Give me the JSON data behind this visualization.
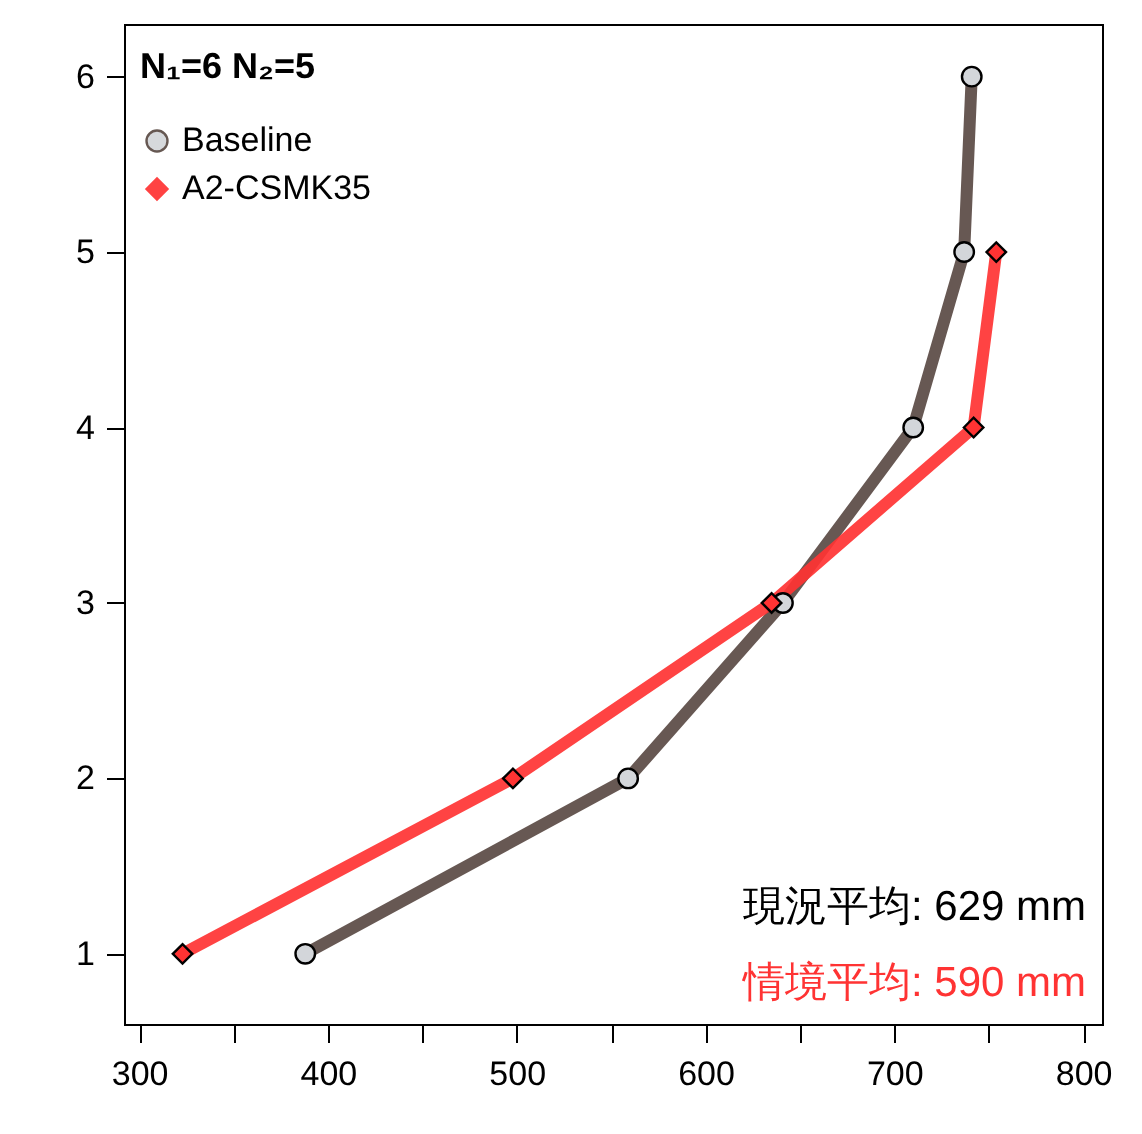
{
  "chart_data": {
    "type": "line",
    "series": [
      {
        "name": "Baseline",
        "color": "#5a4a44",
        "marker": "circle",
        "x": [
          388,
          559,
          641,
          710,
          737,
          741
        ],
        "values": [
          1,
          2,
          3,
          4,
          5,
          6
        ]
      },
      {
        "name": "A2-CSMK35",
        "color": "#ff3333",
        "marker": "diamond",
        "x": [
          323,
          498,
          635,
          742,
          754
        ],
        "values": [
          1,
          2,
          3,
          4,
          5
        ]
      }
    ],
    "xlim": [
      292,
      810
    ],
    "xticks": [
      300,
      {
        "value": 350,
        "label": null
      },
      400,
      {
        "value": 450,
        "label": null
      },
      500,
      {
        "value": 550,
        "label": null
      },
      600,
      {
        "value": 650,
        "label": null
      },
      700,
      {
        "value": 750,
        "label": null
      },
      800
    ],
    "ylim": [
      0.6,
      6.3
    ],
    "yticks": [
      1,
      2,
      3,
      4,
      5,
      6
    ],
    "grid": false,
    "legend": "top left",
    "line_style": "solid",
    "annotations": [
      "N₁=6   N₂=5",
      "現況平均: 629 mm",
      "情境平均: 590 mm"
    ]
  }
}
